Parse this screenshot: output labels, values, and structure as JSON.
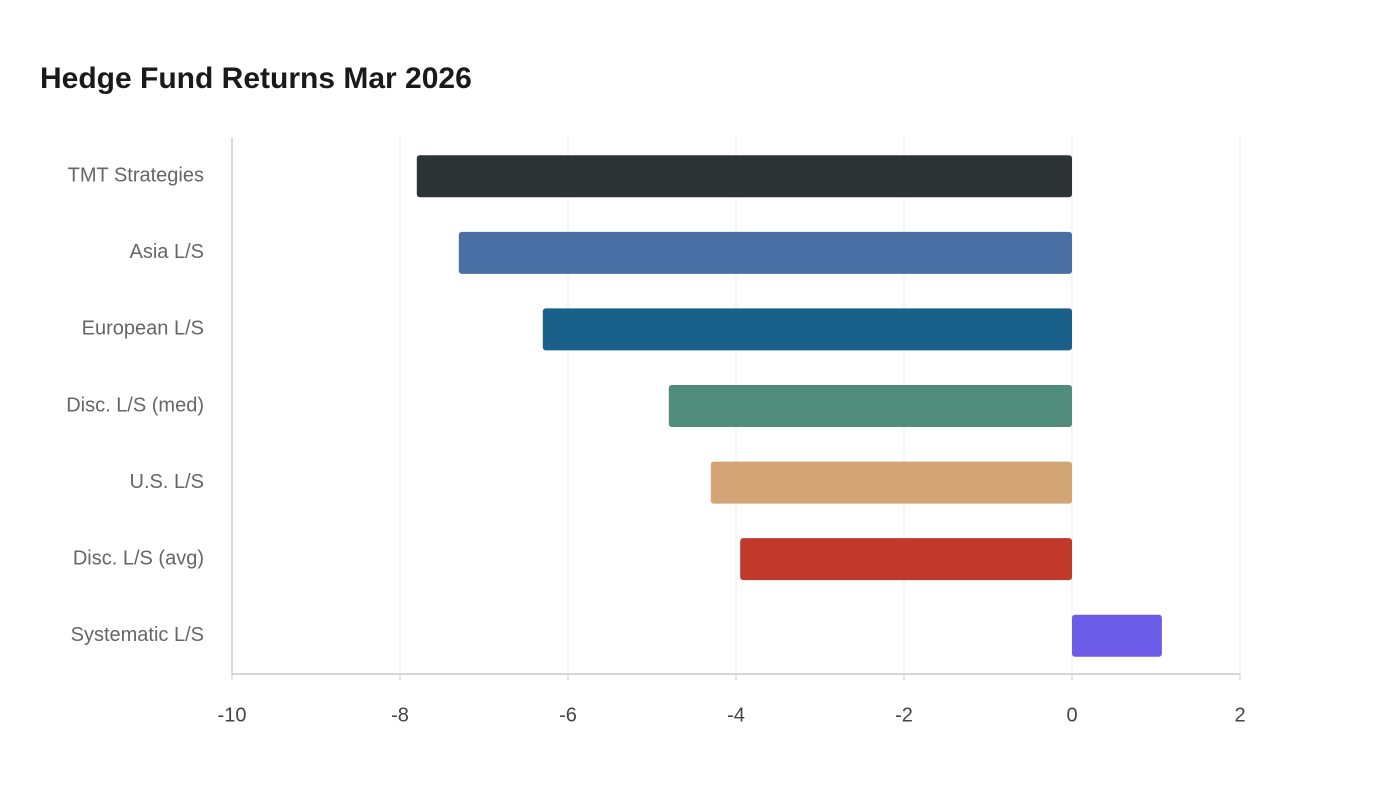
{
  "chart_data": {
    "type": "hbar",
    "title": "Hedge Fund Returns Mar 2026",
    "categories": [
      "TMT Strategies",
      "Asia L/S",
      "European L/S",
      "Disc. L/S (med)",
      "U.S. L/S",
      "Disc. L/S (avg)",
      "Systematic L/S"
    ],
    "values": [
      -7.8,
      -7.3,
      -6.3,
      -4.8,
      -4.3,
      -3.95,
      1.07
    ],
    "colors": [
      "#2d3436",
      "#4a6fa5",
      "#19608a",
      "#4f8c7a",
      "#d4a574",
      "#c0392b",
      "#6c5ce7"
    ],
    "xlim": [
      -10,
      2
    ],
    "xticks": [
      -10,
      -8,
      -6,
      -4,
      -2,
      0,
      2
    ],
    "grid": true
  }
}
